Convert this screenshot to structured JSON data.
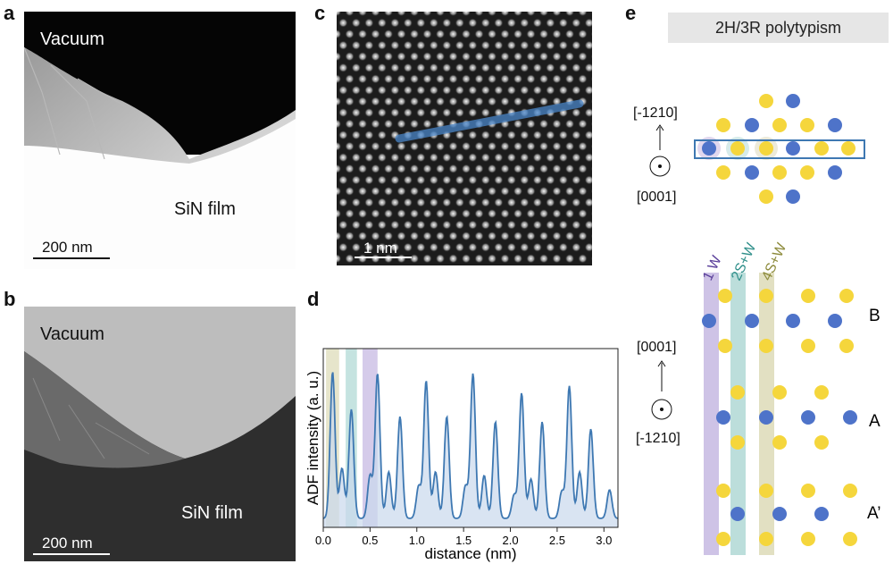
{
  "panels": {
    "a": {
      "label": "a",
      "vacuum": "Vacuum",
      "film": "SiN film",
      "scale": "200 nm"
    },
    "b": {
      "label": "b",
      "vacuum": "Vacuum",
      "film": "SiN film",
      "scale": "200 nm"
    },
    "c": {
      "label": "c",
      "scale": "1 nm"
    },
    "d": {
      "label": "d"
    },
    "e": {
      "label": "e",
      "title": "2H/3R polytypism",
      "top_dir_up": "[-1210]",
      "top_dir_out": "[0001]",
      "bottom_dir_up": "[0001]",
      "bottom_dir_out": "[-1210]",
      "column_labels": [
        "1 W",
        "2S+W",
        "4S+W"
      ],
      "stacking": [
        "B",
        "A",
        "A’"
      ]
    }
  },
  "colors": {
    "sulfur": "#f5d63c",
    "tungsten": "#4e73c9",
    "line": "#3e78b2",
    "fill": "#c9d9ec",
    "band_1w": "#b9a9dc",
    "band_2sw": "#9fd0cc",
    "band_4sw": "#d6d3a8"
  },
  "chart_data": {
    "type": "line",
    "xlabel": "distance (nm)",
    "ylabel": "ADF intensity (a. u.)",
    "xlim": [
      0,
      3.15
    ],
    "xticks": [
      "0.0",
      "0.5",
      "1.0",
      "1.5",
      "2.0",
      "2.5",
      "3.0"
    ],
    "peaks": [
      [
        0.1,
        0.87
      ],
      [
        0.2,
        0.33
      ],
      [
        0.3,
        0.66
      ],
      [
        0.5,
        0.29
      ],
      [
        0.58,
        0.86
      ],
      [
        0.7,
        0.31
      ],
      [
        0.82,
        0.62
      ],
      [
        1.02,
        0.23
      ],
      [
        1.1,
        0.82
      ],
      [
        1.2,
        0.31
      ],
      [
        1.32,
        0.62
      ],
      [
        1.52,
        0.23
      ],
      [
        1.6,
        0.86
      ],
      [
        1.72,
        0.29
      ],
      [
        1.84,
        0.59
      ],
      [
        2.04,
        0.18
      ],
      [
        2.12,
        0.75
      ],
      [
        2.22,
        0.27
      ],
      [
        2.34,
        0.59
      ],
      [
        2.55,
        0.2
      ],
      [
        2.63,
        0.79
      ],
      [
        2.74,
        0.31
      ],
      [
        2.86,
        0.55
      ],
      [
        3.06,
        0.21
      ]
    ],
    "baseline": 0.05,
    "bands": [
      [
        0.03,
        0.17
      ],
      [
        0.24,
        0.36
      ],
      [
        0.42,
        0.58
      ]
    ],
    "grid": false
  }
}
